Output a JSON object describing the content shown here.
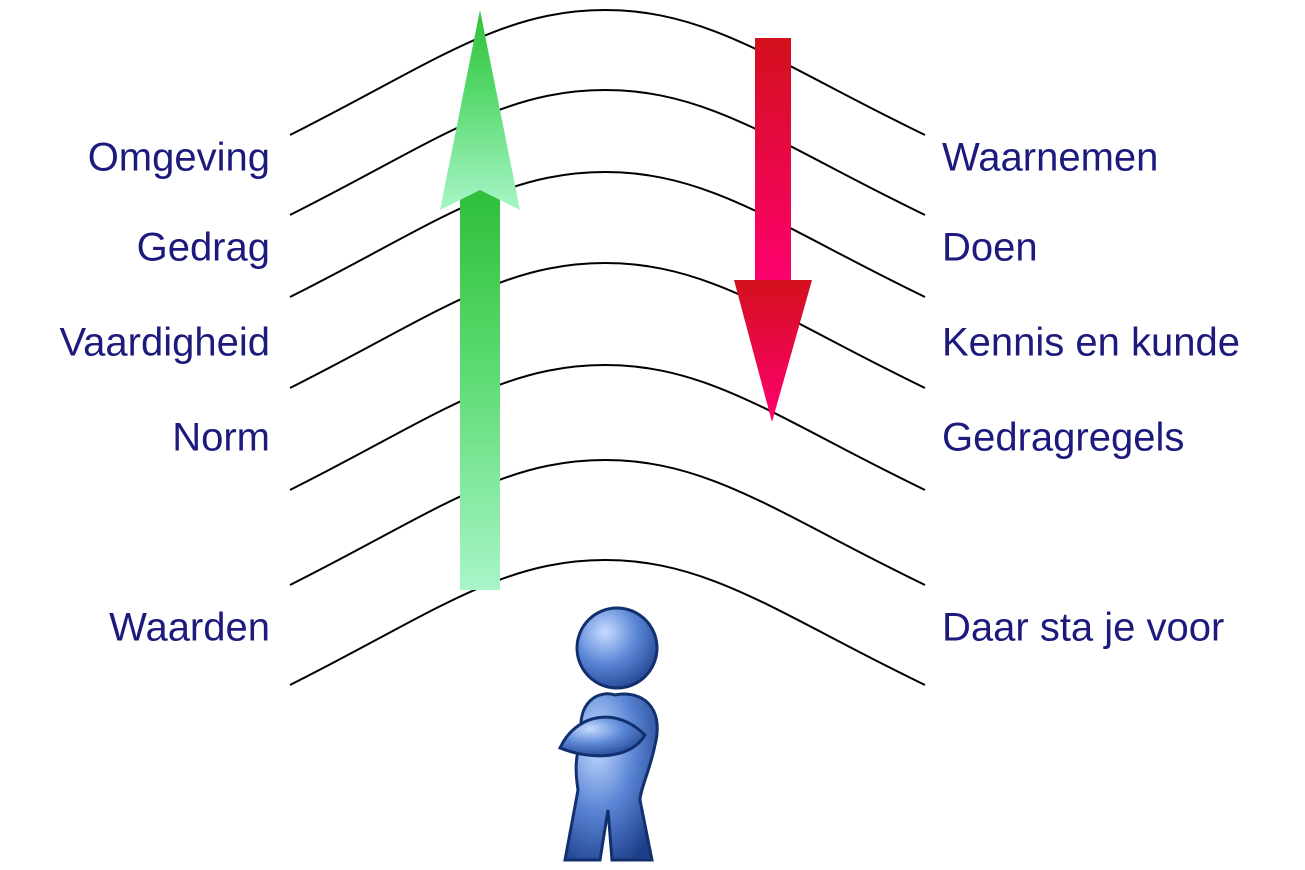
{
  "left_labels": [
    "Omgeving",
    "Gedrag",
    "Vaardigheid",
    "Norm",
    "Waarden"
  ],
  "right_labels": [
    "Waarnemen",
    "Doen",
    "Kennis en kunde",
    "Gedragregels",
    "Daar sta je voor"
  ]
}
